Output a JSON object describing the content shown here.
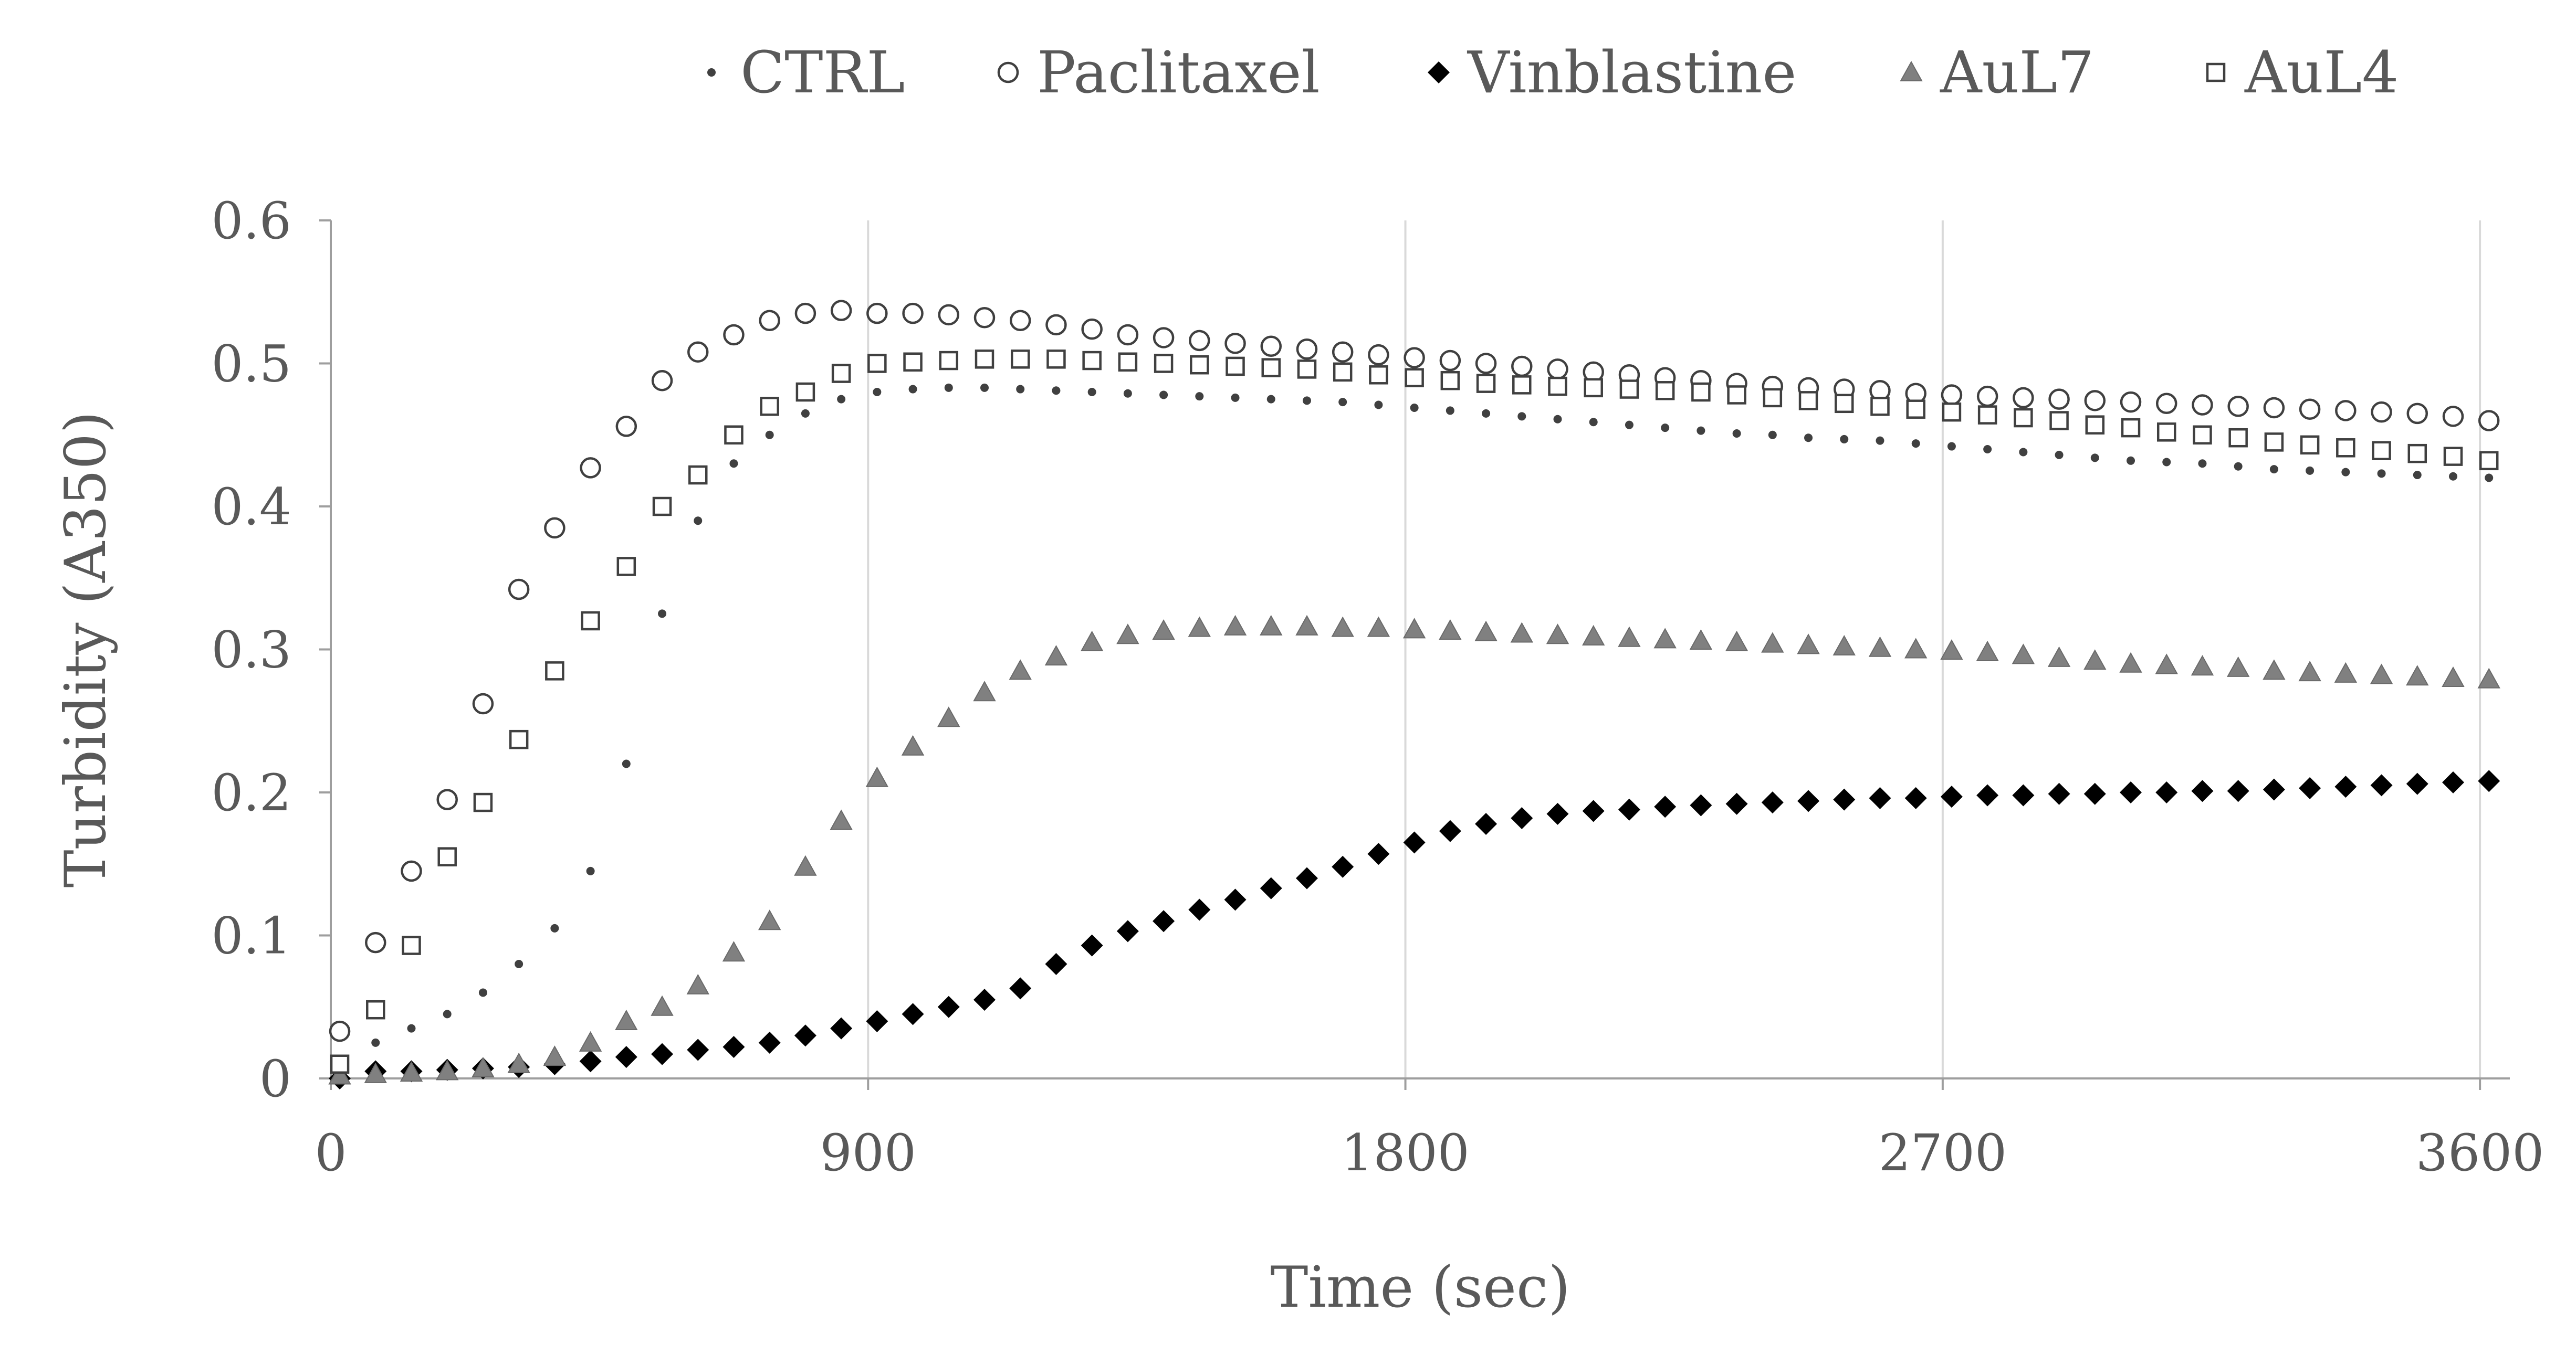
{
  "chart_data": {
    "type": "scatter",
    "title": "",
    "xlabel": "Time (sec)",
    "ylabel": "Turbidity (A350)",
    "xlim": [
      0,
      3650
    ],
    "ylim": [
      0,
      0.6
    ],
    "x_ticks": [
      0,
      900,
      1800,
      2700,
      3600
    ],
    "x_tick_labels": [
      "0",
      "900",
      "1800",
      "2700",
      "3600"
    ],
    "y_ticks": [
      0,
      0.1,
      0.2,
      0.3,
      0.4,
      0.5,
      0.6
    ],
    "y_tick_labels": [
      "0",
      "0.1",
      "0.2",
      "0.3",
      "0.4",
      "0.5",
      "0.6"
    ],
    "grid": "vertical",
    "legend_position": "top",
    "x": [
      15,
      75,
      135,
      195,
      255,
      315,
      375,
      435,
      495,
      555,
      615,
      675,
      735,
      795,
      855,
      915,
      975,
      1035,
      1095,
      1155,
      1215,
      1275,
      1335,
      1395,
      1455,
      1515,
      1575,
      1635,
      1695,
      1755,
      1815,
      1875,
      1935,
      1995,
      2055,
      2115,
      2175,
      2235,
      2295,
      2355,
      2415,
      2475,
      2535,
      2595,
      2655,
      2715,
      2775,
      2835,
      2895,
      2955,
      3015,
      3075,
      3135,
      3195,
      3255,
      3315,
      3375,
      3435,
      3495,
      3555,
      3615
    ],
    "series": [
      {
        "name": "CTRL",
        "marker": "dot",
        "color": "#404040",
        "values": [
          0.012,
          0.025,
          0.035,
          0.045,
          0.06,
          0.08,
          0.105,
          0.145,
          0.22,
          0.325,
          0.39,
          0.43,
          0.45,
          0.465,
          0.475,
          0.48,
          0.482,
          0.483,
          0.483,
          0.482,
          0.481,
          0.48,
          0.479,
          0.478,
          0.477,
          0.476,
          0.475,
          0.474,
          0.473,
          0.471,
          0.469,
          0.467,
          0.465,
          0.463,
          0.461,
          0.459,
          0.457,
          0.455,
          0.453,
          0.451,
          0.45,
          0.448,
          0.447,
          0.446,
          0.444,
          0.442,
          0.44,
          0.438,
          0.436,
          0.434,
          0.432,
          0.431,
          0.43,
          0.428,
          0.426,
          0.425,
          0.424,
          0.423,
          0.422,
          0.421,
          0.42
        ]
      },
      {
        "name": "Paclitaxel",
        "marker": "circle",
        "color": "#404040",
        "values": [
          0.033,
          0.095,
          0.145,
          0.195,
          0.262,
          0.342,
          0.385,
          0.427,
          0.456,
          0.488,
          0.508,
          0.52,
          0.53,
          0.535,
          0.537,
          0.535,
          0.535,
          0.534,
          0.532,
          0.53,
          0.527,
          0.524,
          0.52,
          0.518,
          0.516,
          0.514,
          0.512,
          0.51,
          0.508,
          0.506,
          0.504,
          0.502,
          0.5,
          0.498,
          0.496,
          0.494,
          0.492,
          0.49,
          0.488,
          0.486,
          0.484,
          0.483,
          0.482,
          0.481,
          0.479,
          0.478,
          0.477,
          0.476,
          0.475,
          0.474,
          0.473,
          0.472,
          0.471,
          0.47,
          0.469,
          0.468,
          0.467,
          0.466,
          0.465,
          0.463,
          0.46
        ]
      },
      {
        "name": "Vinblastine",
        "marker": "diamond",
        "color": "#000000",
        "values": [
          0.0,
          0.005,
          0.005,
          0.006,
          0.007,
          0.008,
          0.01,
          0.012,
          0.015,
          0.017,
          0.02,
          0.022,
          0.025,
          0.03,
          0.035,
          0.04,
          0.045,
          0.05,
          0.055,
          0.063,
          0.08,
          0.093,
          0.103,
          0.11,
          0.118,
          0.125,
          0.133,
          0.14,
          0.148,
          0.157,
          0.165,
          0.173,
          0.178,
          0.182,
          0.185,
          0.187,
          0.188,
          0.19,
          0.191,
          0.192,
          0.193,
          0.194,
          0.195,
          0.196,
          0.196,
          0.197,
          0.198,
          0.198,
          0.199,
          0.199,
          0.2,
          0.2,
          0.201,
          0.201,
          0.202,
          0.203,
          0.204,
          0.205,
          0.206,
          0.207,
          0.208
        ]
      },
      {
        "name": "AuL7",
        "marker": "triangle",
        "color": "#808080",
        "values": [
          0.002,
          0.003,
          0.004,
          0.005,
          0.007,
          0.01,
          0.015,
          0.025,
          0.04,
          0.05,
          0.065,
          0.088,
          0.11,
          0.148,
          0.18,
          0.21,
          0.232,
          0.252,
          0.27,
          0.285,
          0.295,
          0.305,
          0.31,
          0.313,
          0.315,
          0.316,
          0.316,
          0.316,
          0.315,
          0.315,
          0.314,
          0.313,
          0.312,
          0.311,
          0.31,
          0.309,
          0.308,
          0.307,
          0.306,
          0.305,
          0.304,
          0.303,
          0.302,
          0.301,
          0.3,
          0.299,
          0.298,
          0.296,
          0.294,
          0.292,
          0.29,
          0.289,
          0.288,
          0.287,
          0.285,
          0.284,
          0.283,
          0.282,
          0.281,
          0.28,
          0.279
        ]
      },
      {
        "name": "AuL4",
        "marker": "square",
        "color": "#404040",
        "values": [
          0.01,
          0.048,
          0.093,
          0.155,
          0.193,
          0.237,
          0.285,
          0.32,
          0.358,
          0.4,
          0.422,
          0.45,
          0.47,
          0.48,
          0.493,
          0.5,
          0.501,
          0.502,
          0.503,
          0.503,
          0.503,
          0.502,
          0.501,
          0.5,
          0.499,
          0.498,
          0.497,
          0.496,
          0.494,
          0.492,
          0.49,
          0.488,
          0.486,
          0.485,
          0.484,
          0.483,
          0.482,
          0.481,
          0.48,
          0.478,
          0.476,
          0.474,
          0.472,
          0.47,
          0.468,
          0.466,
          0.464,
          0.462,
          0.46,
          0.457,
          0.455,
          0.452,
          0.45,
          0.448,
          0.445,
          0.443,
          0.441,
          0.439,
          0.437,
          0.435,
          0.432
        ]
      }
    ]
  }
}
